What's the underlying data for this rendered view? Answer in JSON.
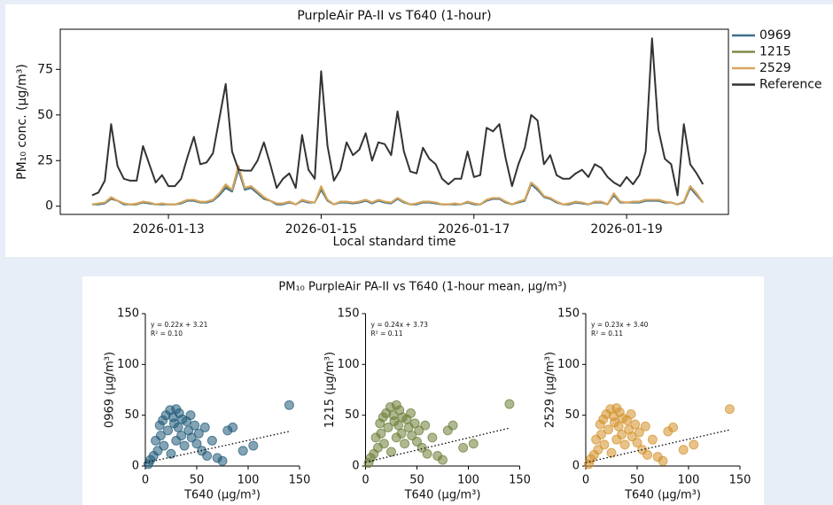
{
  "chart_data": [
    {
      "type": "line",
      "title": "PurpleAir PA-II vs T640 (1-hour)",
      "xlabel": "Local standard time",
      "ylabel": "PM₁₀ conc. (µg/m³)",
      "x": [
        "2026-01-12T00:00",
        "2026-01-12T02:00",
        "2026-01-12T04:00",
        "2026-01-12T06:00",
        "2026-01-12T08:00",
        "2026-01-12T10:00",
        "2026-01-12T12:00",
        "2026-01-12T14:00",
        "2026-01-12T16:00",
        "2026-01-12T18:00",
        "2026-01-12T20:00",
        "2026-01-12T22:00",
        "2026-01-13T00:00",
        "2026-01-13T02:00",
        "2026-01-13T04:00",
        "2026-01-13T06:00",
        "2026-01-13T08:00",
        "2026-01-13T10:00",
        "2026-01-13T12:00",
        "2026-01-13T14:00",
        "2026-01-13T16:00",
        "2026-01-13T18:00",
        "2026-01-13T20:00",
        "2026-01-13T22:00",
        "2026-01-14T00:00",
        "2026-01-14T02:00",
        "2026-01-14T04:00",
        "2026-01-14T06:00",
        "2026-01-14T08:00",
        "2026-01-14T10:00",
        "2026-01-14T12:00",
        "2026-01-14T14:00",
        "2026-01-14T16:00",
        "2026-01-14T18:00",
        "2026-01-14T20:00",
        "2026-01-14T22:00",
        "2026-01-15T00:00",
        "2026-01-15T02:00",
        "2026-01-15T04:00",
        "2026-01-15T06:00",
        "2026-01-15T08:00",
        "2026-01-15T10:00",
        "2026-01-15T12:00",
        "2026-01-15T14:00",
        "2026-01-15T16:00",
        "2026-01-15T18:00",
        "2026-01-15T20:00",
        "2026-01-15T22:00",
        "2026-01-16T00:00",
        "2026-01-16T02:00",
        "2026-01-16T04:00",
        "2026-01-16T06:00",
        "2026-01-16T08:00",
        "2026-01-16T10:00",
        "2026-01-16T12:00",
        "2026-01-16T14:00",
        "2026-01-16T16:00",
        "2026-01-16T18:00",
        "2026-01-16T20:00",
        "2026-01-16T22:00",
        "2026-01-17T00:00",
        "2026-01-17T02:00",
        "2026-01-17T04:00",
        "2026-01-17T06:00",
        "2026-01-17T08:00",
        "2026-01-17T10:00",
        "2026-01-17T12:00",
        "2026-01-17T14:00",
        "2026-01-17T16:00",
        "2026-01-17T18:00",
        "2026-01-17T20:00",
        "2026-01-17T22:00",
        "2026-01-18T00:00",
        "2026-01-18T02:00",
        "2026-01-18T04:00",
        "2026-01-18T06:00",
        "2026-01-18T08:00",
        "2026-01-18T10:00",
        "2026-01-18T12:00",
        "2026-01-18T14:00",
        "2026-01-18T16:00",
        "2026-01-18T18:00",
        "2026-01-18T20:00",
        "2026-01-18T22:00",
        "2026-01-19T00:00",
        "2026-01-19T02:00",
        "2026-01-19T04:00",
        "2026-01-19T06:00",
        "2026-01-19T08:00",
        "2026-01-19T10:00",
        "2026-01-19T12:00",
        "2026-01-19T14:00",
        "2026-01-19T16:00",
        "2026-01-19T18:00",
        "2026-01-19T20:00",
        "2026-01-19T22:00",
        "2026-01-20T00:00"
      ],
      "series": [
        {
          "name": "0969",
          "color": "#3d6f8c",
          "values": [
            1,
            1,
            1.5,
            4,
            3,
            1,
            1,
            1,
            2,
            1.5,
            1,
            1,
            1,
            1,
            1.5,
            3,
            3,
            2,
            2,
            3,
            6,
            10,
            8,
            20,
            9,
            10,
            7,
            4,
            3,
            1,
            1,
            2,
            1,
            3,
            2,
            2,
            9,
            3,
            1,
            2,
            2,
            1.5,
            2,
            3,
            1.5,
            3,
            2,
            1.5,
            4,
            2,
            1,
            1,
            2,
            2,
            1.5,
            1,
            1,
            1,
            1,
            2,
            1,
            1,
            3,
            4,
            4,
            2,
            1,
            2,
            3,
            12,
            9,
            5,
            4,
            2,
            1,
            1,
            2,
            1.5,
            1,
            2,
            2,
            1,
            6,
            2,
            2,
            2,
            2,
            3,
            3,
            3,
            2,
            2,
            1,
            2,
            10,
            6,
            2
          ]
        },
        {
          "name": "1215",
          "color": "#7e8c4b",
          "values": [
            1,
            1.5,
            2,
            4.5,
            3,
            1.5,
            1,
            1,
            2.5,
            2,
            1,
            1.5,
            1,
            1,
            2,
            3.5,
            3.5,
            2,
            2.5,
            3.5,
            7,
            11,
            9,
            22,
            10,
            11,
            8,
            4.5,
            3,
            1.5,
            1.5,
            2.5,
            1,
            3.5,
            2.5,
            2,
            10,
            3.5,
            1,
            2.5,
            2.5,
            2,
            2.5,
            3.5,
            2,
            3.5,
            2.5,
            2,
            4.5,
            2.5,
            1,
            1.5,
            2.5,
            2.5,
            2,
            1,
            1,
            1.5,
            1,
            2.5,
            1.5,
            1,
            3.5,
            4.5,
            4.5,
            2.5,
            1,
            2.5,
            3.5,
            13,
            10,
            5.5,
            4.5,
            2.5,
            1,
            1.5,
            2.5,
            2,
            1,
            2.5,
            2.5,
            1,
            7,
            2.5,
            2,
            2.5,
            2.5,
            3.5,
            3.5,
            3.5,
            2.5,
            2,
            1,
            2.5,
            11,
            7,
            2
          ]
        },
        {
          "name": "2529",
          "color": "#d9a55c",
          "values": [
            1,
            1.5,
            2,
            5,
            3,
            1.5,
            1,
            1.5,
            2.5,
            2,
            1,
            1.5,
            1,
            1,
            2,
            3.5,
            3.5,
            2.5,
            2.5,
            3.5,
            7,
            12,
            9,
            22,
            10,
            11,
            8,
            5,
            3,
            1.5,
            1.5,
            2.5,
            1,
            3.5,
            2.5,
            2,
            11,
            3.5,
            1,
            2.5,
            2.5,
            2,
            2.5,
            3.5,
            2,
            3.5,
            2.5,
            2,
            4.5,
            2.5,
            1,
            1.5,
            2.5,
            2.5,
            2,
            1,
            1,
            1.5,
            1,
            2.5,
            1.5,
            1,
            3.5,
            4.5,
            4.5,
            2.5,
            1,
            2.5,
            3.5,
            13,
            10,
            5.5,
            4.5,
            2.5,
            1,
            1.5,
            2.5,
            2,
            1,
            2.5,
            2.5,
            1,
            7,
            2.5,
            2,
            2.5,
            2.5,
            3.5,
            3.5,
            3.5,
            2.5,
            2,
            1,
            2.5,
            11,
            7,
            2
          ]
        },
        {
          "name": "Reference",
          "color": "#333333",
          "values": [
            6,
            7.5,
            14,
            45,
            22,
            15,
            14,
            14,
            33,
            23,
            13,
            17,
            11,
            11,
            15,
            27,
            38,
            23,
            24,
            29,
            48,
            67,
            30,
            20,
            19.5,
            19.5,
            25,
            35,
            23,
            10,
            15,
            18,
            10,
            39,
            20,
            15,
            74,
            33,
            14,
            20,
            35,
            28,
            31,
            40,
            25,
            35,
            34,
            28,
            52,
            30,
            19,
            18,
            32,
            26,
            23,
            15,
            12,
            15,
            15,
            30,
            16,
            17,
            43,
            41,
            45,
            26,
            11,
            23,
            32,
            50,
            47,
            23,
            28,
            17,
            15,
            15,
            18,
            20,
            16,
            23,
            21,
            16,
            13,
            11,
            16,
            12,
            17,
            30,
            92,
            42,
            26,
            23,
            6,
            45,
            23,
            18,
            12
          ]
        }
      ],
      "xlim": [
        "2026-01-11T14:00",
        "2026-01-20T08:00"
      ],
      "xticks": [
        "2026-01-13",
        "2026-01-15",
        "2026-01-17",
        "2026-01-19"
      ],
      "ylim": [
        -4.5,
        97
      ],
      "yticks": [
        0,
        25,
        50,
        75
      ],
      "legend": "right"
    },
    {
      "type": "scatter",
      "title": "PM₁₀ PurpleAir PA-II vs T640 (1-hour mean, µg/m³)",
      "panels": [
        {
          "xlabel": "T640 (µg/m³)",
          "ylabel": "0969 (µg/m³)",
          "color": "#1f5a78",
          "annotations": [
            "y = 0.22x + 3.21",
            "R² = 0.10"
          ],
          "fit": {
            "slope": 0.22,
            "intercept": 3.21,
            "x": [
              0,
              140
            ]
          },
          "x": [
            3,
            5,
            8,
            10,
            12,
            14,
            15,
            17,
            18,
            20,
            22,
            24,
            25,
            27,
            28,
            30,
            30,
            32,
            33,
            35,
            36,
            38,
            40,
            42,
            44,
            45,
            48,
            50,
            52,
            55,
            58,
            60,
            65,
            70,
            75,
            80,
            85,
            95,
            105,
            140
          ],
          "values": [
            2,
            6,
            10,
            25,
            15,
            40,
            30,
            45,
            20,
            50,
            35,
            55,
            12,
            48,
            42,
            56,
            25,
            38,
            52,
            30,
            46,
            20,
            44,
            35,
            50,
            28,
            40,
            22,
            32,
            15,
            38,
            10,
            25,
            8,
            5,
            35,
            38,
            15,
            20,
            60
          ],
          "xlim": [
            0,
            150
          ],
          "ylim": [
            0,
            150
          ],
          "xticks": [
            0,
            50,
            100,
            150
          ],
          "yticks": [
            0,
            50,
            100,
            150
          ]
        },
        {
          "xlabel": "T640 (µg/m³)",
          "ylabel": "1215 (µg/m³)",
          "color": "#6b7d36",
          "annotations": [
            "y = 0.24x + 3.73",
            "R² = 0.11"
          ],
          "fit": {
            "slope": 0.24,
            "intercept": 3.73,
            "x": [
              0,
              140
            ]
          },
          "x": [
            3,
            5,
            8,
            10,
            12,
            14,
            15,
            17,
            18,
            20,
            22,
            24,
            25,
            27,
            28,
            30,
            30,
            32,
            33,
            35,
            36,
            38,
            40,
            42,
            44,
            45,
            48,
            50,
            52,
            55,
            58,
            60,
            65,
            70,
            75,
            80,
            85,
            95,
            105,
            140
          ],
          "values": [
            3,
            8,
            12,
            28,
            18,
            42,
            32,
            48,
            22,
            52,
            38,
            58,
            14,
            50,
            44,
            60,
            28,
            40,
            55,
            32,
            48,
            22,
            46,
            38,
            52,
            30,
            42,
            24,
            35,
            18,
            40,
            12,
            28,
            10,
            6,
            35,
            40,
            18,
            22,
            61
          ],
          "xlim": [
            0,
            150
          ],
          "ylim": [
            0,
            150
          ],
          "xticks": [
            0,
            50,
            100,
            150
          ],
          "yticks": [
            0,
            50,
            100,
            150
          ]
        },
        {
          "xlabel": "T640 (µg/m³)",
          "ylabel": "2529 (µg/m³)",
          "color": "#d4912a",
          "annotations": [
            "y = 0.23x + 3.40",
            "R² = 0.11"
          ],
          "fit": {
            "slope": 0.23,
            "intercept": 3.4,
            "x": [
              0,
              140
            ]
          },
          "x": [
            3,
            5,
            8,
            10,
            12,
            14,
            15,
            17,
            18,
            20,
            22,
            24,
            25,
            27,
            28,
            30,
            30,
            32,
            33,
            35,
            36,
            38,
            40,
            42,
            44,
            45,
            48,
            50,
            52,
            55,
            58,
            60,
            65,
            70,
            75,
            80,
            85,
            95,
            105,
            140
          ],
          "values": [
            2,
            7,
            11,
            26,
            16,
            41,
            31,
            46,
            21,
            51,
            36,
            56,
            13,
            49,
            43,
            57,
            26,
            39,
            53,
            31,
            47,
            21,
            45,
            36,
            51,
            29,
            41,
            23,
            33,
            16,
            39,
            11,
            26,
            9,
            5,
            34,
            38,
            16,
            21,
            56
          ],
          "xlim": [
            0,
            150
          ],
          "ylim": [
            0,
            150
          ],
          "xticks": [
            0,
            50,
            100,
            150
          ],
          "yticks": [
            0,
            50,
            100,
            150
          ]
        }
      ]
    }
  ]
}
